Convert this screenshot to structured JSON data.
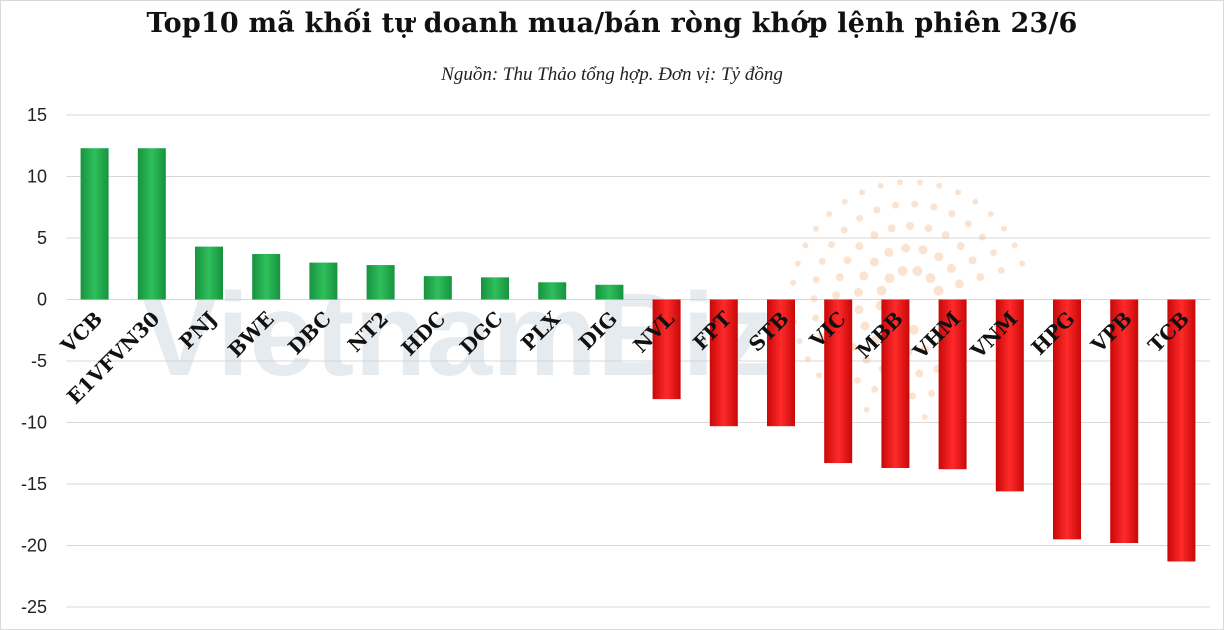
{
  "chart_data": {
    "type": "bar",
    "title": "Top10 mã khối tự doanh mua/bán ròng khớp lệnh phiên 23/6",
    "subtitle": "Nguồn: Thu Thảo tổng hợp. Đơn vị: Tỷ đồng",
    "categories": [
      "VCB",
      "E1VFVN30",
      "PNJ",
      "BWE",
      "DBC",
      "NT2",
      "HDC",
      "DGC",
      "PLX",
      "DIG",
      "NVL",
      "FPT",
      "STB",
      "VIC",
      "MBB",
      "VHM",
      "VNM",
      "HPG",
      "VPB",
      "TCB"
    ],
    "values": [
      12.3,
      12.3,
      4.3,
      3.7,
      3.0,
      2.8,
      1.9,
      1.8,
      1.4,
      1.2,
      -8.1,
      -10.3,
      -10.3,
      -13.3,
      -13.7,
      -13.8,
      -15.6,
      -19.5,
      -19.8,
      -21.3
    ],
    "ylim": [
      -25,
      15
    ],
    "yticks": [
      15,
      10,
      5,
      0,
      -5,
      -10,
      -15,
      -20,
      -25
    ],
    "grid": true,
    "colors": {
      "positive": "#1fa34a",
      "negative": "#e81010"
    },
    "watermark": "VietnamBiz"
  }
}
